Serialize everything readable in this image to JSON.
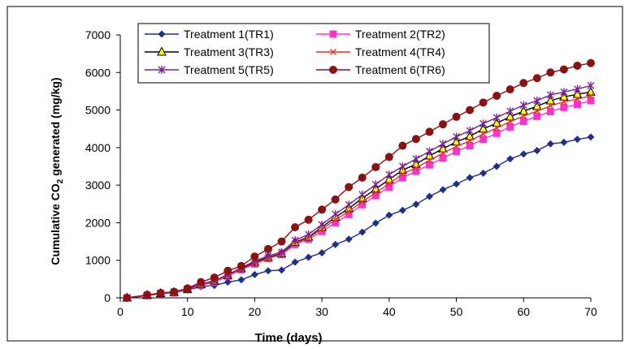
{
  "chart_data": {
    "type": "line",
    "title": "",
    "xlabel": "Time (days)",
    "ylabel_parts": [
      "Cumulative CO",
      "2",
      " generated (mg/kg)"
    ],
    "xlim": [
      0,
      70
    ],
    "ylim": [
      0,
      7000
    ],
    "x_ticks": [
      "0",
      "10",
      "20",
      "30",
      "40",
      "50",
      "60",
      "70"
    ],
    "y_ticks": [
      "0",
      "1000",
      "2000",
      "3000",
      "4000",
      "5000",
      "6000",
      "7000"
    ],
    "grid": false,
    "legend_position": "top-left",
    "series": [
      {
        "name": "Treatment 1(TR1)",
        "color": "#1f2f8c",
        "marker": "diamond",
        "x": [
          1,
          4,
          6,
          8,
          10,
          12,
          14,
          16,
          18,
          20,
          22,
          24,
          26,
          28,
          30,
          32,
          34,
          36,
          38,
          40,
          42,
          44,
          46,
          48,
          50,
          52,
          54,
          56,
          58,
          60,
          62,
          64,
          66,
          68,
          70
        ],
        "y": [
          0,
          60,
          120,
          150,
          210,
          300,
          330,
          420,
          480,
          620,
          720,
          740,
          950,
          1080,
          1200,
          1420,
          1560,
          1750,
          1990,
          2200,
          2330,
          2490,
          2700,
          2880,
          3030,
          3200,
          3320,
          3500,
          3700,
          3830,
          3920,
          4100,
          4140,
          4220,
          4280
        ]
      },
      {
        "name": "Treatment 2(TR2)",
        "color": "#ff33cc",
        "marker": "square",
        "x": [
          1,
          4,
          6,
          8,
          10,
          12,
          14,
          16,
          18,
          20,
          22,
          24,
          26,
          28,
          30,
          32,
          34,
          36,
          38,
          40,
          42,
          44,
          46,
          48,
          50,
          52,
          54,
          56,
          58,
          60,
          62,
          64,
          66,
          68,
          70
        ],
        "y": [
          0,
          60,
          110,
          130,
          220,
          330,
          420,
          580,
          750,
          900,
          1050,
          1150,
          1420,
          1560,
          1770,
          2000,
          2220,
          2480,
          2720,
          2950,
          3200,
          3370,
          3540,
          3720,
          3900,
          4050,
          4220,
          4380,
          4550,
          4700,
          4830,
          4960,
          5070,
          5150,
          5250
        ]
      },
      {
        "name": "Treatment 3(TR3)",
        "color": "#000000",
        "marker": "triangle",
        "x": [
          1,
          4,
          6,
          8,
          10,
          12,
          14,
          16,
          18,
          20,
          22,
          24,
          26,
          28,
          30,
          32,
          34,
          36,
          38,
          40,
          42,
          44,
          46,
          48,
          50,
          52,
          54,
          56,
          58,
          60,
          62,
          64,
          66,
          68,
          70
        ],
        "y": [
          0,
          70,
          120,
          150,
          230,
          360,
          450,
          600,
          780,
          950,
          1080,
          1180,
          1480,
          1620,
          1880,
          2150,
          2380,
          2650,
          2900,
          3150,
          3400,
          3560,
          3780,
          3970,
          4150,
          4300,
          4500,
          4650,
          4820,
          4970,
          5100,
          5250,
          5350,
          5420,
          5480
        ]
      },
      {
        "name": "Treatment 4(TR4)",
        "color": "#e0342a",
        "marker": "x",
        "x": [
          1,
          4,
          6,
          8,
          10,
          12,
          14,
          16,
          18,
          20,
          22,
          24,
          26,
          28,
          30,
          32,
          34,
          36,
          38,
          40,
          42,
          44,
          46,
          48,
          50,
          52,
          54,
          56,
          58,
          60,
          62,
          64,
          66,
          68,
          70
        ],
        "y": [
          0,
          65,
          115,
          140,
          225,
          345,
          440,
          590,
          760,
          920,
          1060,
          1160,
          1450,
          1600,
          1830,
          2080,
          2300,
          2560,
          2800,
          3040,
          3300,
          3460,
          3660,
          3850,
          4030,
          4180,
          4360,
          4520,
          4690,
          4840,
          4970,
          5110,
          5220,
          5290,
          5380
        ]
      },
      {
        "name": "Treatment 5(TR5)",
        "color": "#7a1f9c",
        "marker": "star",
        "x": [
          1,
          4,
          6,
          8,
          10,
          12,
          14,
          16,
          18,
          20,
          22,
          24,
          26,
          28,
          30,
          32,
          34,
          36,
          38,
          40,
          42,
          44,
          46,
          48,
          50,
          52,
          54,
          56,
          58,
          60,
          62,
          64,
          66,
          68,
          70
        ],
        "y": [
          0,
          70,
          125,
          155,
          240,
          370,
          460,
          620,
          800,
          980,
          1120,
          1220,
          1530,
          1690,
          1950,
          2230,
          2480,
          2750,
          3020,
          3280,
          3500,
          3700,
          3900,
          4100,
          4290,
          4450,
          4640,
          4800,
          4970,
          5130,
          5250,
          5400,
          5480,
          5560,
          5650
        ]
      },
      {
        "name": "Treatment 6(TR6)",
        "color": "#8b1212",
        "marker": "circle",
        "x": [
          1,
          4,
          6,
          8,
          10,
          12,
          14,
          16,
          18,
          20,
          22,
          24,
          26,
          28,
          30,
          32,
          34,
          36,
          38,
          40,
          42,
          44,
          46,
          48,
          50,
          52,
          54,
          56,
          58,
          60,
          62,
          64,
          66,
          68,
          70
        ],
        "y": [
          0,
          80,
          130,
          160,
          250,
          420,
          540,
          720,
          850,
          1100,
          1300,
          1500,
          1880,
          2080,
          2350,
          2620,
          2950,
          3200,
          3480,
          3750,
          4050,
          4230,
          4420,
          4620,
          4820,
          5000,
          5200,
          5380,
          5550,
          5720,
          5850,
          6000,
          6080,
          6180,
          6250
        ]
      }
    ]
  }
}
